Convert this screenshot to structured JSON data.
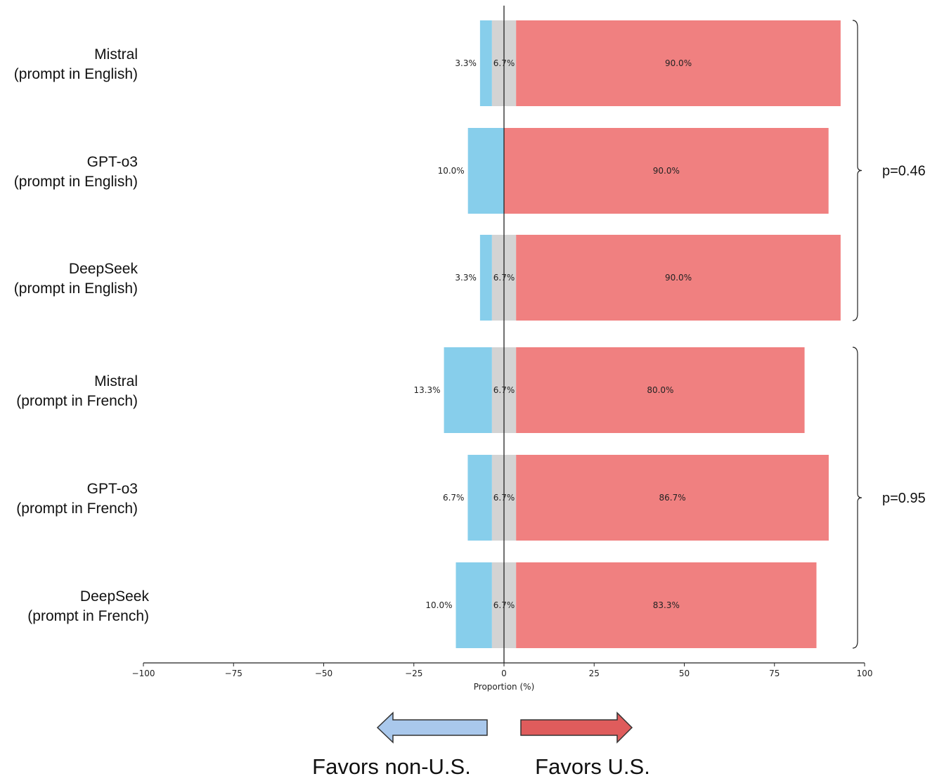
{
  "chart_data": {
    "type": "bar",
    "orientation": "horizontal",
    "stacked": "diverging",
    "categories": [
      "Mistral\n(prompt in English)",
      "GPT-o3\n(prompt in English)",
      "DeepSeek\n(prompt in English)",
      "Mistral\n(prompt in French)",
      "GPT-o3\n(prompt in French)",
      "DeepSeek\n(prompt in French)"
    ],
    "series": [
      {
        "name": "Favors non-U.S.",
        "color": "#87ceeb",
        "values": [
          3.3,
          10.0,
          3.3,
          13.3,
          6.7,
          10.0
        ],
        "labels": [
          "3.3%",
          "10.0%",
          "3.3%",
          "13.3%",
          "6.7%",
          "10.0%"
        ]
      },
      {
        "name": "",
        "color": "#d3d3d3",
        "values": [
          6.7,
          0,
          6.7,
          6.7,
          6.7,
          6.7
        ],
        "labels": [
          "6.7%",
          "",
          "6.7%",
          "6.7%",
          "6.7%",
          "6.7%"
        ]
      },
      {
        "name": "Favors U.S.",
        "color": "#f08080",
        "values": [
          90.0,
          90.0,
          90.0,
          80.0,
          86.7,
          83.3
        ],
        "labels": [
          "90.0%",
          "90.0%",
          "90.0%",
          "80.0%",
          "86.7%",
          "83.3%"
        ]
      }
    ],
    "xlabel": "Proportion (%)",
    "xlim": [
      -100,
      100
    ],
    "xticks": [
      -100,
      -75,
      -50,
      -25,
      0,
      25,
      50,
      75,
      100
    ],
    "xtick_labels": [
      "−100",
      "−75",
      "−50",
      "−25",
      "0",
      "25",
      "50",
      "75",
      "100"
    ],
    "groups": [
      {
        "p_label": "p=0.46",
        "rows": [
          0,
          1,
          2
        ]
      },
      {
        "p_label": "p=0.95",
        "rows": [
          3,
          4,
          5
        ]
      }
    ],
    "arrows": {
      "left": {
        "label": "Favors non-U.S.",
        "color": "#a9c8ec"
      },
      "right": {
        "label": "Favors U.S.",
        "color": "#df5c5c"
      }
    }
  }
}
